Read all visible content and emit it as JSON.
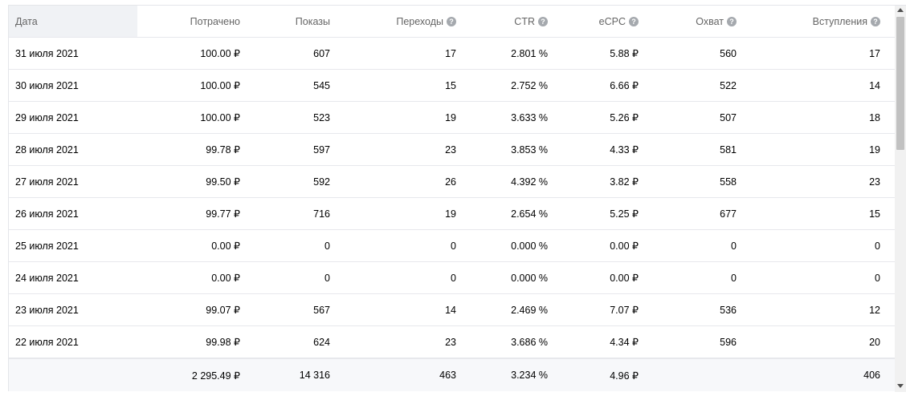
{
  "headers": {
    "date": "Дата",
    "spent": "Потрачено",
    "impressions": "Показы",
    "clicks": "Переходы",
    "ctr": "CTR",
    "ecpc": "eCPC",
    "reach": "Охват",
    "joins": "Вступления"
  },
  "help_glyph": "?",
  "rows": [
    {
      "date": "31 июля 2021",
      "spent": "100.00 ₽",
      "impressions": "607",
      "clicks": "17",
      "ctr": "2.801 %",
      "ecpc": "5.88 ₽",
      "reach": "560",
      "joins": "17"
    },
    {
      "date": "30 июля 2021",
      "spent": "100.00 ₽",
      "impressions": "545",
      "clicks": "15",
      "ctr": "2.752 %",
      "ecpc": "6.66 ₽",
      "reach": "522",
      "joins": "14"
    },
    {
      "date": "29 июля 2021",
      "spent": "100.00 ₽",
      "impressions": "523",
      "clicks": "19",
      "ctr": "3.633 %",
      "ecpc": "5.26 ₽",
      "reach": "507",
      "joins": "18"
    },
    {
      "date": "28 июля 2021",
      "spent": "99.78 ₽",
      "impressions": "597",
      "clicks": "23",
      "ctr": "3.853 %",
      "ecpc": "4.33 ₽",
      "reach": "581",
      "joins": "19"
    },
    {
      "date": "27 июля 2021",
      "spent": "99.50 ₽",
      "impressions": "592",
      "clicks": "26",
      "ctr": "4.392 %",
      "ecpc": "3.82 ₽",
      "reach": "558",
      "joins": "23"
    },
    {
      "date": "26 июля 2021",
      "spent": "99.77 ₽",
      "impressions": "716",
      "clicks": "19",
      "ctr": "2.654 %",
      "ecpc": "5.25 ₽",
      "reach": "677",
      "joins": "15"
    },
    {
      "date": "25 июля 2021",
      "spent": "0.00 ₽",
      "impressions": "0",
      "clicks": "0",
      "ctr": "0.000 %",
      "ecpc": "0.00 ₽",
      "reach": "0",
      "joins": "0"
    },
    {
      "date": "24 июля 2021",
      "spent": "0.00 ₽",
      "impressions": "0",
      "clicks": "0",
      "ctr": "0.000 %",
      "ecpc": "0.00 ₽",
      "reach": "0",
      "joins": "0"
    },
    {
      "date": "23 июля 2021",
      "spent": "99.07 ₽",
      "impressions": "567",
      "clicks": "14",
      "ctr": "2.469 %",
      "ecpc": "7.07 ₽",
      "reach": "536",
      "joins": "12"
    },
    {
      "date": "22 июля 2021",
      "spent": "99.98 ₽",
      "impressions": "624",
      "clicks": "23",
      "ctr": "3.686 %",
      "ecpc": "4.34 ₽",
      "reach": "596",
      "joins": "20"
    }
  ],
  "totals": {
    "spent": "2 295.49 ₽",
    "impressions": "14 316",
    "clicks": "463",
    "ctr": "3.234 %",
    "ecpc": "4.96 ₽",
    "joins": "406"
  },
  "colors": {
    "header_bg_date": "#f0f2f5",
    "border": "#e7e8ec",
    "header_text": "#656565",
    "help_icon_bg": "#a5a9ae",
    "totals_bg": "#f7f8fa"
  }
}
